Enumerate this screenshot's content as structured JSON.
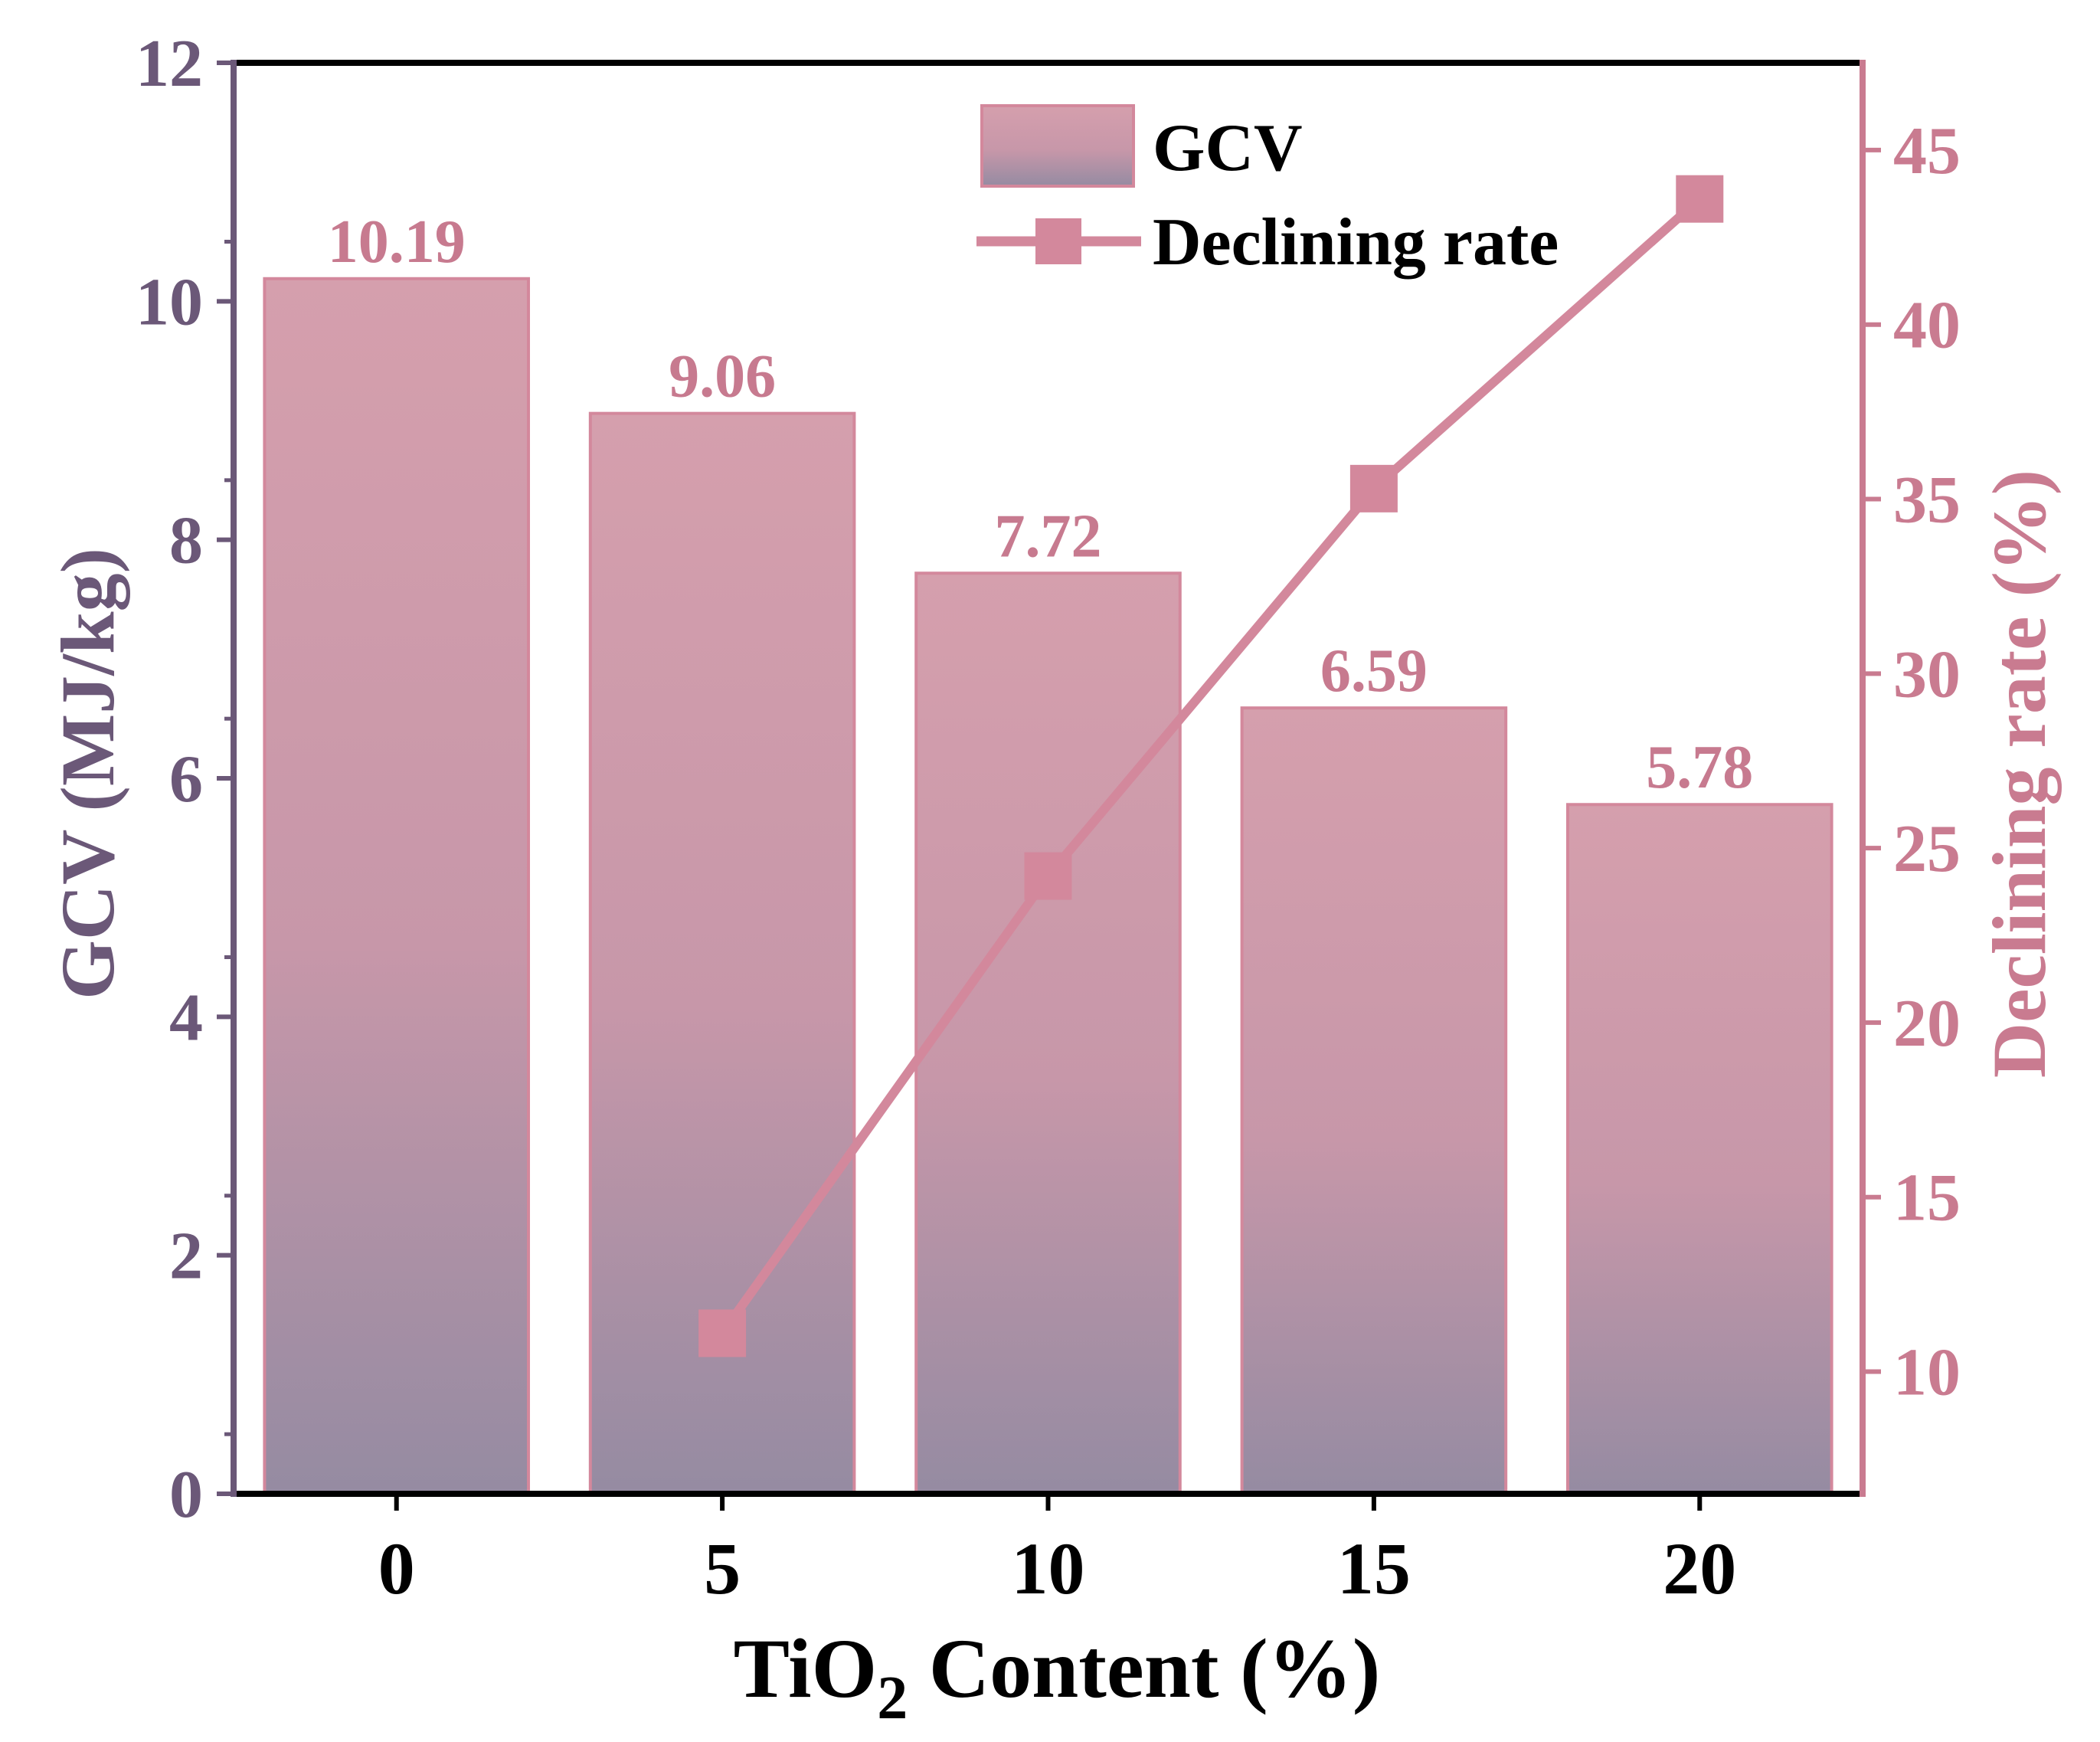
{
  "colors": {
    "left_axis": "#6b5878",
    "right_axis": "#c97b90",
    "bar_top": "#d59fad",
    "bar_bottom": "#958ba2",
    "bar_edge": "#d3889c",
    "line": "#d3889c",
    "label": "#c77a8f",
    "frame": "#000000"
  },
  "chart_data": {
    "type": "bar",
    "categories": [
      "0",
      "5",
      "10",
      "15",
      "20"
    ],
    "xlabel_main": "TiO",
    "xlabel_sub": "2",
    "xlabel_rest": " Content (%)",
    "ylabel": "GCV (MJ/kg)",
    "ylabel_right": "Declining rate (%)",
    "ylim": [
      0,
      12
    ],
    "ylim_right": [
      6.5,
      47.5
    ],
    "yticks": [
      0,
      2,
      4,
      6,
      8,
      10,
      12
    ],
    "yticks_right": [
      10,
      15,
      20,
      25,
      30,
      35,
      40,
      45
    ],
    "grid": false,
    "legend_position": "top-right",
    "series": [
      {
        "name": "GCV",
        "type": "bar",
        "axis": "left",
        "values": [
          10.19,
          9.06,
          7.72,
          6.59,
          5.78
        ],
        "labels": [
          "10.19",
          "9.06",
          "7.72",
          "6.59",
          "5.78"
        ]
      },
      {
        "name": "Declining rate",
        "type": "line",
        "axis": "right",
        "marker": "square",
        "x": [
          "5",
          "10",
          "15",
          "20"
        ],
        "values": [
          11.1,
          24.2,
          35.3,
          43.6
        ]
      }
    ]
  }
}
